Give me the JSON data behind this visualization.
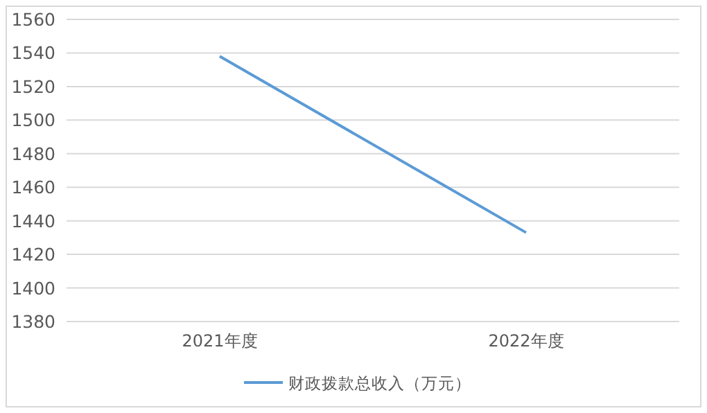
{
  "chart_data": {
    "type": "line",
    "categories": [
      "2021年度",
      "2022年度"
    ],
    "series": [
      {
        "name": "财政拨款总收入（万元）",
        "color": "#5b9bd5",
        "values": [
          1538,
          1433
        ]
      }
    ],
    "ylim": [
      1380,
      1560
    ],
    "yticks": [
      1380,
      1400,
      1420,
      1440,
      1460,
      1480,
      1500,
      1520,
      1540,
      1560
    ],
    "grid": "y",
    "legend": "bottom",
    "marker": "none",
    "line_style": "solid"
  }
}
